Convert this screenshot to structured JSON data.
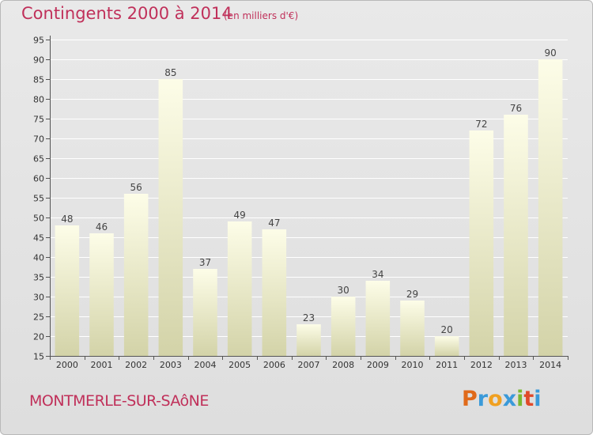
{
  "chart_data": {
    "type": "bar",
    "title": "Contingents 2000 à 2014",
    "subtitle": "(en milliers d'€)",
    "categories": [
      "2000",
      "2001",
      "2002",
      "2003",
      "2004",
      "2005",
      "2006",
      "2007",
      "2008",
      "2009",
      "2010",
      "2011",
      "2012",
      "2013",
      "2014"
    ],
    "values": [
      48,
      46,
      56,
      85,
      37,
      49,
      47,
      23,
      30,
      34,
      29,
      20,
      72,
      76,
      90
    ],
    "ylim": [
      15,
      95
    ],
    "yticks": [
      15,
      20,
      25,
      30,
      35,
      40,
      45,
      50,
      55,
      60,
      65,
      70,
      75,
      80,
      85,
      90,
      95
    ],
    "grid": true,
    "colors": {
      "bar_top": "#fdfde8",
      "bar_bottom": "#d3d3a8",
      "title": "#c0305a"
    }
  },
  "footer": {
    "commune": "MONTMERLE-SUR-SAôNE",
    "logo_letters": [
      "P",
      "r",
      "o",
      "x",
      "i",
      "t",
      "i"
    ],
    "logo_colors": [
      "#e06a1a",
      "#3a9ad9",
      "#f0a020",
      "#3a9ad9",
      "#7ab830",
      "#e04a2a",
      "#3a9ad9"
    ]
  }
}
